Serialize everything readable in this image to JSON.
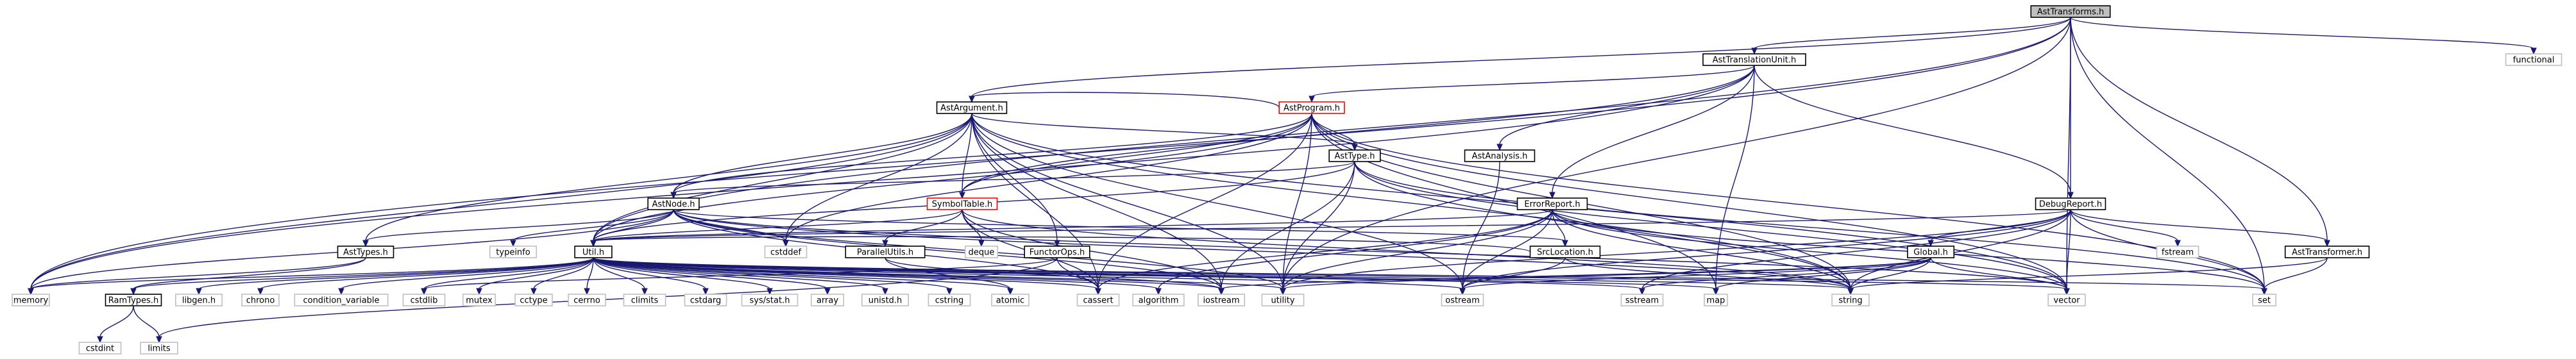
{
  "diagram": {
    "nodes": [
      {
        "id": "AstTransforms.h",
        "label": "AstTransforms.h",
        "style": "root"
      },
      {
        "id": "AstTranslationUnit.h",
        "label": "AstTranslationUnit.h",
        "style": "linked"
      },
      {
        "id": "functional",
        "label": "functional",
        "style": "plain"
      },
      {
        "id": "AstProgram.h",
        "label": "AstProgram.h",
        "style": "red"
      },
      {
        "id": "AstArgument.h",
        "label": "AstArgument.h",
        "style": "linked"
      },
      {
        "id": "AstAnalysis.h",
        "label": "AstAnalysis.h",
        "style": "linked"
      },
      {
        "id": "AstType.h",
        "label": "AstType.h",
        "style": "linked"
      },
      {
        "id": "SymbolTable.h",
        "label": "SymbolTable.h",
        "style": "red"
      },
      {
        "id": "AstNode.h",
        "label": "AstNode.h",
        "style": "linked"
      },
      {
        "id": "ErrorReport.h",
        "label": "ErrorReport.h",
        "style": "linked"
      },
      {
        "id": "DebugReport.h",
        "label": "DebugReport.h",
        "style": "linked"
      },
      {
        "id": "AstTypes.h",
        "label": "AstTypes.h",
        "style": "linked"
      },
      {
        "id": "typeinfo",
        "label": "typeinfo",
        "style": "plain"
      },
      {
        "id": "cstddef",
        "label": "cstddef",
        "style": "plain"
      },
      {
        "id": "ParallelUtils.h",
        "label": "ParallelUtils.h",
        "style": "linked"
      },
      {
        "id": "deque",
        "label": "deque",
        "style": "plain"
      },
      {
        "id": "FunctorOps.h",
        "label": "FunctorOps.h",
        "style": "linked"
      },
      {
        "id": "SrcLocation.h",
        "label": "SrcLocation.h",
        "style": "linked"
      },
      {
        "id": "Global.h",
        "label": "Global.h",
        "style": "linked"
      },
      {
        "id": "fstream",
        "label": "fstream",
        "style": "plain"
      },
      {
        "id": "AstTransformer.h",
        "label": "AstTransformer.h",
        "style": "linked"
      },
      {
        "id": "Util.h",
        "label": "Util.h",
        "style": "linked"
      },
      {
        "id": "memory",
        "label": "memory",
        "style": "plain"
      },
      {
        "id": "RamTypes.h",
        "label": "RamTypes.h",
        "style": "linked"
      },
      {
        "id": "libgen.h",
        "label": "libgen.h",
        "style": "plain"
      },
      {
        "id": "chrono",
        "label": "chrono",
        "style": "plain"
      },
      {
        "id": "condition_variable",
        "label": "condition_variable",
        "style": "plain"
      },
      {
        "id": "cstdlib",
        "label": "cstdlib",
        "style": "plain"
      },
      {
        "id": "mutex",
        "label": "mutex",
        "style": "plain"
      },
      {
        "id": "cctype",
        "label": "cctype",
        "style": "plain"
      },
      {
        "id": "cerrno",
        "label": "cerrno",
        "style": "plain"
      },
      {
        "id": "climits",
        "label": "climits",
        "style": "plain"
      },
      {
        "id": "cstdarg",
        "label": "cstdarg",
        "style": "plain"
      },
      {
        "id": "sys/stat.h",
        "label": "sys/stat.h",
        "style": "plain"
      },
      {
        "id": "array",
        "label": "array",
        "style": "plain"
      },
      {
        "id": "unistd.h",
        "label": "unistd.h",
        "style": "plain"
      },
      {
        "id": "cstring",
        "label": "cstring",
        "style": "plain"
      },
      {
        "id": "atomic",
        "label": "atomic",
        "style": "plain"
      },
      {
        "id": "cassert",
        "label": "cassert",
        "style": "plain"
      },
      {
        "id": "algorithm",
        "label": "algorithm",
        "style": "plain"
      },
      {
        "id": "iostream",
        "label": "iostream",
        "style": "plain"
      },
      {
        "id": "utility",
        "label": "utility",
        "style": "plain"
      },
      {
        "id": "ostream",
        "label": "ostream",
        "style": "plain"
      },
      {
        "id": "sstream",
        "label": "sstream",
        "style": "plain"
      },
      {
        "id": "map",
        "label": "map",
        "style": "plain"
      },
      {
        "id": "string",
        "label": "string",
        "style": "plain"
      },
      {
        "id": "vector",
        "label": "vector",
        "style": "plain"
      },
      {
        "id": "set",
        "label": "set",
        "style": "plain"
      },
      {
        "id": "cstdint",
        "label": "cstdint",
        "style": "plain"
      },
      {
        "id": "limits",
        "label": "limits",
        "style": "plain"
      }
    ],
    "edges": [
      [
        "AstTransforms.h",
        "AstTranslationUnit.h"
      ],
      [
        "AstTransforms.h",
        "functional"
      ],
      [
        "AstTransforms.h",
        "AstArgument.h"
      ],
      [
        "AstTransforms.h",
        "memory"
      ],
      [
        "AstTransforms.h",
        "Util.h"
      ],
      [
        "AstTransforms.h",
        "DebugReport.h"
      ],
      [
        "AstTransforms.h",
        "AstTransformer.h"
      ],
      [
        "AstTransforms.h",
        "utility"
      ],
      [
        "AstTransforms.h",
        "vector"
      ],
      [
        "AstTransforms.h",
        "set"
      ],
      [
        "AstTranslationUnit.h",
        "AstProgram.h"
      ],
      [
        "AstTranslationUnit.h",
        "AstAnalysis.h"
      ],
      [
        "AstTranslationUnit.h",
        "ErrorReport.h"
      ],
      [
        "AstTranslationUnit.h",
        "DebugReport.h"
      ],
      [
        "AstTranslationUnit.h",
        "memory"
      ],
      [
        "AstTranslationUnit.h",
        "map"
      ],
      [
        "AstTranslationUnit.h",
        "SymbolTable.h"
      ],
      [
        "AstProgram.h",
        "AstArgument.h"
      ],
      [
        "AstProgram.h",
        "AstType.h"
      ],
      [
        "AstProgram.h",
        "AstNode.h"
      ],
      [
        "AstProgram.h",
        "Util.h"
      ],
      [
        "AstProgram.h",
        "SymbolTable.h"
      ],
      [
        "AstProgram.h",
        "cassert"
      ],
      [
        "AstProgram.h",
        "utility"
      ],
      [
        "AstProgram.h",
        "string"
      ],
      [
        "AstProgram.h",
        "vector"
      ],
      [
        "AstProgram.h",
        "map"
      ],
      [
        "AstProgram.h",
        "cstddef"
      ],
      [
        "AstProgram.h",
        "set"
      ],
      [
        "AstArgument.h",
        "AstNode.h"
      ],
      [
        "AstArgument.h",
        "AstType.h"
      ],
      [
        "AstArgument.h",
        "SymbolTable.h"
      ],
      [
        "AstArgument.h",
        "AstTypes.h"
      ],
      [
        "AstArgument.h",
        "FunctorOps.h"
      ],
      [
        "AstArgument.h",
        "Util.h"
      ],
      [
        "AstArgument.h",
        "cstddef"
      ],
      [
        "AstArgument.h",
        "memory"
      ],
      [
        "AstArgument.h",
        "string"
      ],
      [
        "AstArgument.h",
        "vector"
      ],
      [
        "AstArgument.h",
        "utility"
      ],
      [
        "AstArgument.h",
        "cassert"
      ],
      [
        "AstArgument.h",
        "ostream"
      ],
      [
        "AstArgument.h",
        "iostream"
      ],
      [
        "AstAnalysis.h",
        "ostream"
      ],
      [
        "AstType.h",
        "AstNode.h"
      ],
      [
        "AstType.h",
        "Util.h"
      ],
      [
        "AstType.h",
        "iostream"
      ],
      [
        "AstType.h",
        "utility"
      ],
      [
        "AstType.h",
        "string"
      ],
      [
        "AstType.h",
        "vector"
      ],
      [
        "AstType.h",
        "set"
      ],
      [
        "SymbolTable.h",
        "ParallelUtils.h"
      ],
      [
        "SymbolTable.h",
        "deque"
      ],
      [
        "SymbolTable.h",
        "Util.h"
      ],
      [
        "SymbolTable.h",
        "cassert"
      ],
      [
        "SymbolTable.h",
        "iostream"
      ],
      [
        "SymbolTable.h",
        "string"
      ],
      [
        "AstNode.h",
        "AstTypes.h"
      ],
      [
        "AstNode.h",
        "SrcLocation.h"
      ],
      [
        "AstNode.h",
        "Util.h"
      ],
      [
        "AstNode.h",
        "typeinfo"
      ],
      [
        "AstNode.h",
        "cstddef"
      ],
      [
        "AstNode.h",
        "memory"
      ],
      [
        "AstNode.h",
        "iostream"
      ],
      [
        "AstNode.h",
        "string"
      ],
      [
        "AstNode.h",
        "vector"
      ],
      [
        "AstNode.h",
        "utility"
      ],
      [
        "AstNode.h",
        "cassert"
      ],
      [
        "ErrorReport.h",
        "SrcLocation.h"
      ],
      [
        "ErrorReport.h",
        "Util.h"
      ],
      [
        "ErrorReport.h",
        "cassert"
      ],
      [
        "ErrorReport.h",
        "ostream"
      ],
      [
        "ErrorReport.h",
        "set"
      ],
      [
        "ErrorReport.h",
        "string"
      ],
      [
        "ErrorReport.h",
        "vector"
      ],
      [
        "ErrorReport.h",
        "utility"
      ],
      [
        "ErrorReport.h",
        "algorithm"
      ],
      [
        "DebugReport.h",
        "Global.h"
      ],
      [
        "DebugReport.h",
        "fstream"
      ],
      [
        "DebugReport.h",
        "AstTransformer.h"
      ],
      [
        "DebugReport.h",
        "Util.h"
      ],
      [
        "DebugReport.h",
        "sstream"
      ],
      [
        "DebugReport.h",
        "string"
      ],
      [
        "DebugReport.h",
        "vector"
      ],
      [
        "DebugReport.h",
        "ostream"
      ],
      [
        "DebugReport.h",
        "utility"
      ],
      [
        "DebugReport.h",
        "set"
      ],
      [
        "AstTypes.h",
        "RamTypes.h"
      ],
      [
        "AstTypes.h",
        "memory"
      ],
      [
        "FunctorOps.h",
        "cassert"
      ],
      [
        "FunctorOps.h",
        "cstdlib"
      ],
      [
        "FunctorOps.h",
        "limits"
      ],
      [
        "SrcLocation.h",
        "Util.h"
      ],
      [
        "SrcLocation.h",
        "ostream"
      ],
      [
        "SrcLocation.h",
        "string"
      ],
      [
        "Global.h",
        "map"
      ],
      [
        "Global.h",
        "string"
      ],
      [
        "Global.h",
        "ostream"
      ],
      [
        "Global.h",
        "vector"
      ],
      [
        "Global.h",
        "iostream"
      ],
      [
        "Global.h",
        "utility"
      ],
      [
        "Global.h",
        "sstream"
      ],
      [
        "AstTransformer.h",
        "set"
      ],
      [
        "AstTransformer.h",
        "string"
      ],
      [
        "Util.h",
        "memory"
      ],
      [
        "Util.h",
        "RamTypes.h"
      ],
      [
        "Util.h",
        "libgen.h"
      ],
      [
        "Util.h",
        "chrono"
      ],
      [
        "Util.h",
        "condition_variable"
      ],
      [
        "Util.h",
        "cstdlib"
      ],
      [
        "Util.h",
        "mutex"
      ],
      [
        "Util.h",
        "cctype"
      ],
      [
        "Util.h",
        "cerrno"
      ],
      [
        "Util.h",
        "climits"
      ],
      [
        "Util.h",
        "cstdarg"
      ],
      [
        "Util.h",
        "sys/stat.h"
      ],
      [
        "Util.h",
        "array"
      ],
      [
        "Util.h",
        "unistd.h"
      ],
      [
        "Util.h",
        "cstring"
      ],
      [
        "Util.h",
        "atomic"
      ],
      [
        "Util.h",
        "cassert"
      ],
      [
        "Util.h",
        "algorithm"
      ],
      [
        "Util.h",
        "iostream"
      ],
      [
        "Util.h",
        "utility"
      ],
      [
        "Util.h",
        "ostream"
      ],
      [
        "Util.h",
        "sstream"
      ],
      [
        "Util.h",
        "map"
      ],
      [
        "Util.h",
        "string"
      ],
      [
        "Util.h",
        "vector"
      ],
      [
        "Util.h",
        "set"
      ],
      [
        "RamTypes.h",
        "cstdint"
      ],
      [
        "RamTypes.h",
        "limits"
      ],
      [
        "ParallelUtils.h",
        "atomic"
      ],
      [
        "ParallelUtils.h",
        "iostream"
      ]
    ]
  }
}
